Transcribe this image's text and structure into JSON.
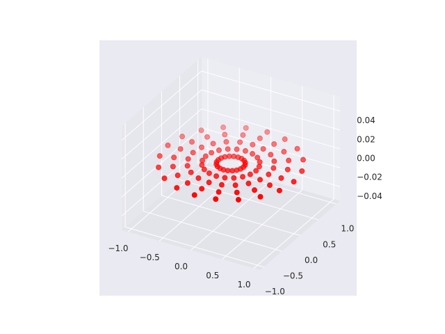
{
  "chart_data": {
    "type": "scatter3d",
    "color": "#ff0000",
    "x": [
      0.2,
      0.19,
      0.162,
      0.118,
      0.062,
      0,
      -0.062,
      -0.118,
      -0.162,
      -0.19,
      -0.2,
      -0.19,
      -0.162,
      -0.118,
      -0.062,
      0,
      0.062,
      0.118,
      0.162,
      0.19,
      0.4,
      0.38,
      0.324,
      0.235,
      0.124,
      0,
      -0.124,
      -0.235,
      -0.324,
      -0.38,
      -0.4,
      -0.38,
      -0.324,
      -0.235,
      -0.124,
      0,
      0.124,
      0.235,
      0.324,
      0.38,
      0.6,
      0.571,
      0.485,
      0.353,
      0.185,
      0,
      -0.185,
      -0.353,
      -0.485,
      -0.571,
      -0.6,
      -0.571,
      -0.485,
      -0.353,
      -0.185,
      0,
      0.185,
      0.353,
      0.485,
      0.571,
      0.8,
      0.761,
      0.647,
      0.47,
      0.247,
      0,
      -0.247,
      -0.47,
      -0.647,
      -0.761,
      -0.8,
      -0.761,
      -0.647,
      -0.47,
      -0.247,
      0,
      0.247,
      0.47,
      0.647,
      0.761,
      1,
      0.951,
      0.809,
      0.588,
      0.309,
      0,
      -0.309,
      -0.588,
      -0.809,
      -0.951,
      -1,
      -0.951,
      -0.809,
      -0.588,
      -0.309,
      0,
      0.309,
      0.588,
      0.809,
      0.951
    ],
    "y": [
      0,
      0.062,
      0.118,
      0.162,
      0.19,
      0.2,
      0.19,
      0.162,
      0.118,
      0.062,
      0,
      -0.062,
      -0.118,
      -0.162,
      -0.19,
      -0.2,
      -0.19,
      -0.162,
      -0.118,
      -0.062,
      0,
      0.124,
      0.235,
      0.324,
      0.38,
      0.4,
      0.38,
      0.324,
      0.235,
      0.124,
      0,
      -0.124,
      -0.235,
      -0.324,
      -0.38,
      -0.4,
      -0.38,
      -0.324,
      -0.235,
      -0.124,
      0,
      0.185,
      0.353,
      0.485,
      0.571,
      0.6,
      0.571,
      0.485,
      0.353,
      0.185,
      0,
      -0.185,
      -0.353,
      -0.485,
      -0.571,
      -0.6,
      -0.571,
      -0.485,
      -0.353,
      -0.185,
      0,
      0.247,
      0.47,
      0.647,
      0.761,
      0.8,
      0.761,
      0.647,
      0.47,
      0.247,
      0,
      -0.247,
      -0.47,
      -0.647,
      -0.761,
      -0.8,
      -0.761,
      -0.647,
      -0.47,
      -0.247,
      0,
      0.309,
      0.588,
      0.809,
      0.951,
      1,
      0.951,
      0.809,
      0.588,
      0.309,
      0,
      -0.309,
      -0.588,
      -0.809,
      -0.951,
      -1,
      -0.951,
      -0.809,
      -0.588,
      -0.309
    ],
    "z": [
      0,
      0,
      0,
      0,
      0,
      0,
      0,
      0,
      0,
      0,
      0,
      0,
      0,
      0,
      0,
      0,
      0,
      0,
      0,
      0,
      0,
      0,
      0,
      0,
      0,
      0,
      0,
      0,
      0,
      0,
      0,
      0,
      0,
      0,
      0,
      0,
      0,
      0,
      0,
      0,
      0,
      0,
      0,
      0,
      0,
      0,
      0,
      0,
      0,
      0,
      0,
      0,
      0,
      0,
      0,
      0,
      0,
      0,
      0,
      0,
      0,
      0,
      0,
      0,
      0,
      0,
      0,
      0,
      0,
      0,
      0,
      0,
      0,
      0,
      0,
      0,
      0,
      0,
      0,
      0,
      0,
      0,
      0,
      0,
      0,
      0,
      0,
      0,
      0,
      0,
      0,
      0,
      0,
      0,
      0,
      0,
      0,
      0,
      0,
      0
    ],
    "xlim": [
      -1.1,
      1.1
    ],
    "ylim": [
      -1.1,
      1.1
    ],
    "zlim": [
      -0.055,
      0.055
    ],
    "xticks": [
      {
        "value": -1,
        "label": "−1.0"
      },
      {
        "value": -0.5,
        "label": "−0.5"
      },
      {
        "value": 0,
        "label": "0.0"
      },
      0.5,
      {
        "value": 1,
        "label": "1.0"
      }
    ],
    "yticks": [
      {
        "value": -1,
        "label": "−1.0"
      },
      {
        "value": -0.5,
        "label": "−0.5"
      },
      {
        "value": 0,
        "label": "0.0"
      },
      0.5,
      {
        "value": 1,
        "label": "1.0"
      }
    ],
    "zticks": [
      {
        "value": -0.04,
        "label": "−0.04"
      },
      {
        "value": -0.02,
        "label": "−0.02"
      },
      {
        "value": 0,
        "label": "0.00"
      },
      0.02,
      0.04
    ],
    "grid": true
  }
}
